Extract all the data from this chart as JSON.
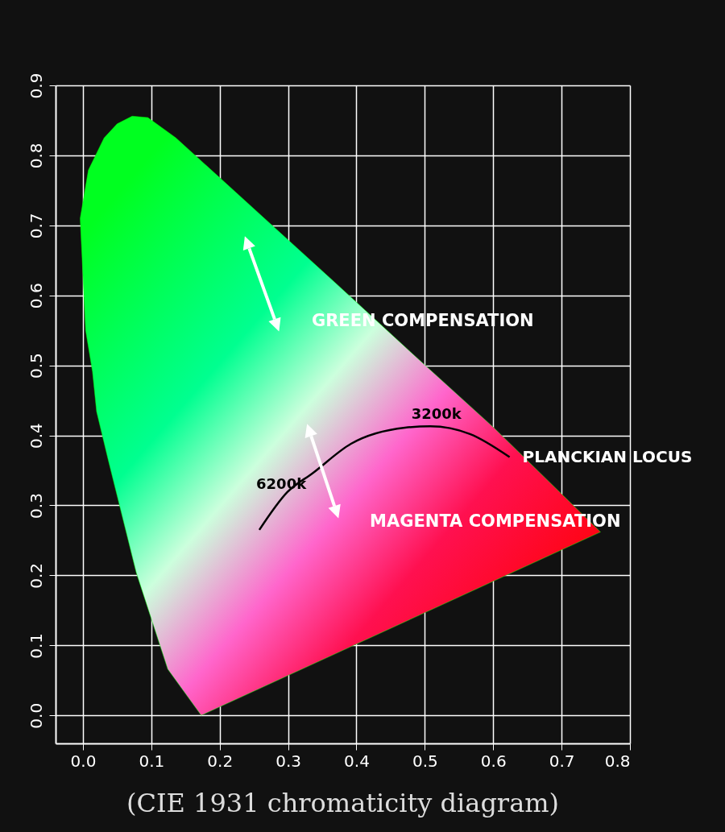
{
  "chart_data": {
    "type": "line",
    "title": "(CIE 1931 chromaticity diagram)",
    "xlim": [
      -0.04,
      0.8
    ],
    "ylim": [
      -0.04,
      0.9
    ],
    "xticks": [
      {
        "value": 0,
        "label": "0.0"
      },
      0.1,
      0.2,
      0.3,
      0.4,
      0.5,
      0.6,
      0.7,
      0.8
    ],
    "yticks": [
      {
        "value": 0,
        "label": "0.0"
      },
      0.1,
      0.2,
      0.3,
      0.4,
      0.5,
      0.6,
      0.7,
      0.8,
      0.9
    ],
    "grid": true,
    "series": [
      {
        "type": "area",
        "color": "#00ff00",
        "x": [
          0.173,
          0.124,
          0.078,
          0.037,
          0.02,
          0.014,
          0.004,
          0.0,
          -0.004,
          0.008,
          0.031,
          0.05,
          0.072,
          0.095,
          0.136,
          0.252,
          0.369,
          0.485,
          0.601,
          0.757,
          0.173
        ],
        "values": [
          0.0,
          0.066,
          0.204,
          0.365,
          0.434,
          0.491,
          0.55,
          0.63,
          0.71,
          0.779,
          0.825,
          0.845,
          0.856,
          0.854,
          0.825,
          0.722,
          0.618,
          0.514,
          0.411,
          0.262,
          0.0
        ]
      },
      {
        "name": "PLANCKIAN LOCUS",
        "color": "#000000",
        "x": [
          0.258,
          0.299,
          0.336,
          0.392,
          0.471,
          0.508,
          0.566,
          0.624
        ],
        "values": [
          0.265,
          0.319,
          0.346,
          0.388,
          0.411,
          0.413,
          0.402,
          0.369
        ]
      }
    ],
    "annotations": [
      {
        "text": "6200k",
        "x": 0.336,
        "y": 0.346
      },
      {
        "text": "3200k",
        "x": 0.471,
        "y": 0.411
      },
      "GREEN COMPENSATION",
      "MAGENTA COMPENSATION"
    ]
  }
}
